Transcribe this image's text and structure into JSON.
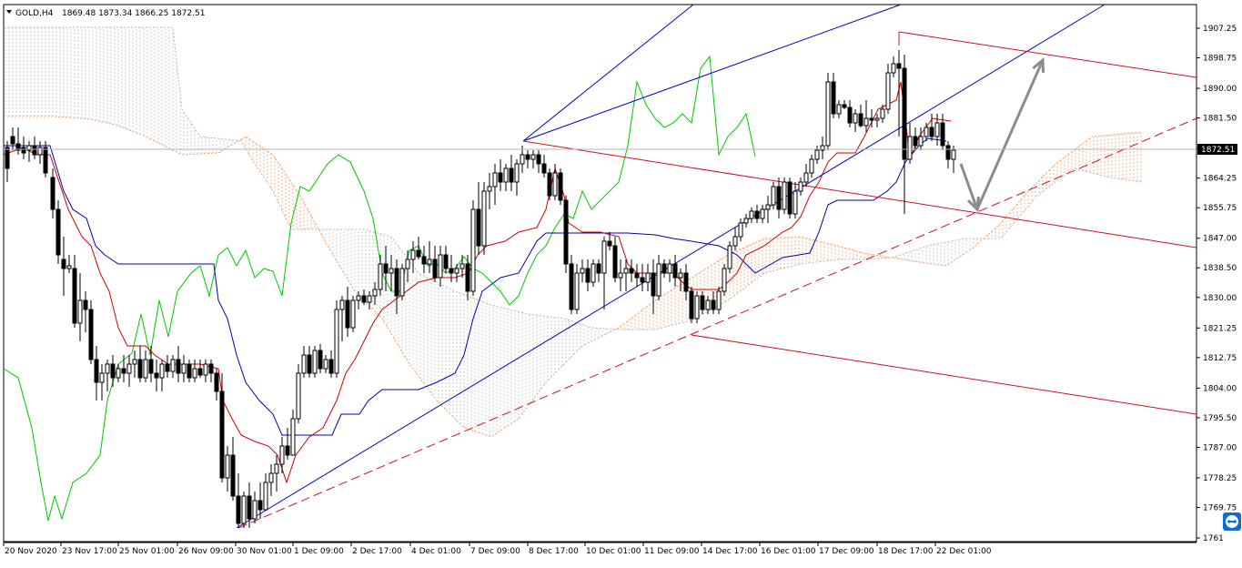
{
  "header": {
    "symbol_label": "GOLD,H4",
    "ohlc_text": "1869.48 1873.34 1866.25 1872.51"
  },
  "chart_data": {
    "type": "candlestick",
    "symbol": "GOLD",
    "timeframe": "H4",
    "ohlc": {
      "open": 1869.48,
      "high": 1873.34,
      "low": 1866.25,
      "close": 1872.51
    },
    "current_price": 1872.51,
    "current_price_label": "1872.51",
    "ylim": [
      1761,
      1912
    ],
    "y_ticks": [
      1907.25,
      1898.75,
      1890.0,
      1881.5,
      1872.75,
      1864.25,
      1855.75,
      1847.0,
      1838.5,
      1830.0,
      1821.25,
      1812.75,
      1804.0,
      1795.5,
      1787.0,
      1778.25,
      1769.75,
      1761.0
    ],
    "y_tick_labels": [
      "1907.25",
      "1898.75",
      "1890.00",
      "1881.50",
      "",
      "1864.25",
      "1855.75",
      "1847.00",
      "1838.50",
      "1830.00",
      "1821.25",
      "1812.75",
      "1804.00",
      "1795.50",
      "1787.00",
      "1778.25",
      "1769.75",
      "1761"
    ],
    "x_labels": [
      "20 Nov 2020",
      "23 Nov 17:00",
      "25 Nov 01:00",
      "26 Nov 09:00",
      "30 Nov 01:00",
      "1 Dec 09:00",
      "2 Dec 17:00",
      "4 Dec 01:00",
      "7 Dec 09:00",
      "8 Dec 17:00",
      "10 Dec 01:00",
      "11 Dec 09:00",
      "14 Dec 17:00",
      "16 Dec 01:00",
      "17 Dec 09:00",
      "18 Dec 17:00",
      "22 Dec 01:00"
    ],
    "indicators": [
      "Ichimoku Kinko Hyo",
      "Andrews Pitchfork",
      "Trend channel"
    ],
    "colors": {
      "tenkan": "#d00000",
      "kijun": "#0000b4",
      "chikou": "#00c800",
      "kumo": "#f4a060",
      "pitchfork": "#d01020",
      "channel": "#0000c8",
      "projection_arrow": "#8c8c8c",
      "bull_candle": "#ffffff",
      "bear_candle": "#000000"
    },
    "grid": false
  },
  "icons": {
    "collapse_marker": "triangle-down-icon",
    "corner_widget": "teamviewer-icon"
  }
}
